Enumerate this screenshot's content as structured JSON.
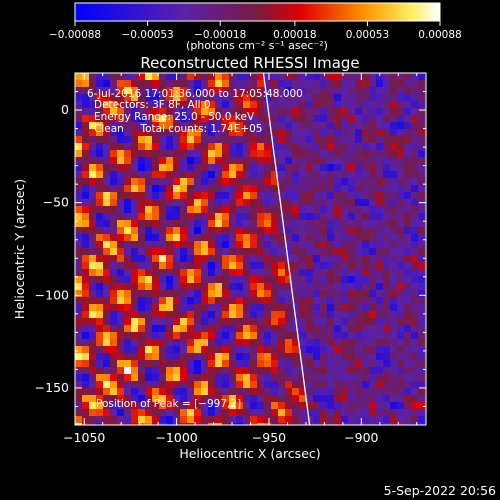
{
  "chart_data": {
    "type": "heatmap",
    "title": "Reconstructed RHESSI Image",
    "xlabel": "Heliocentric X (arcsec)",
    "ylabel": "Heliocentric Y (arcsec)",
    "xlim": [
      -1055,
      -865
    ],
    "ylim": [
      -170,
      20
    ],
    "x_ticks": [
      -1050,
      -1000,
      -950,
      -900
    ],
    "y_ticks": [
      0,
      -50,
      -100,
      -150
    ],
    "x_tick_labels": [
      "−1050",
      "−1000",
      "−950",
      "−900"
    ],
    "y_tick_labels": [
      "0",
      "−50",
      "−100",
      "−150"
    ],
    "colorbar": {
      "min": -0.00088,
      "max": 0.00088,
      "ticks": [
        -0.00088,
        -0.00053,
        -0.00018,
        0.00018,
        0.00053,
        0.00088
      ],
      "tick_labels": [
        "−0.00088",
        "−0.00053",
        "−0.00018",
        "0.00018",
        "0.00053",
        "0.00088"
      ],
      "units_label": "(photons cm⁻² s⁻¹ asec⁻²)"
    },
    "annotations": {
      "time_range": "6-Jul-2016 17:01:36.000 to 17:05:48.000",
      "detectors": "Detectors: 3F 8F, All 0",
      "energy": "Energy Range: 25.0 - 50.0 keV",
      "method": "Clean     Total counts: 1.74E+05",
      "peak": "Position of Peak = [−997,2]"
    },
    "limb_line": {
      "x": [
        -953,
        -928
      ],
      "y": [
        20,
        -170
      ]
    }
  },
  "footer": {
    "date": "5-Sep-2022 20:56"
  }
}
